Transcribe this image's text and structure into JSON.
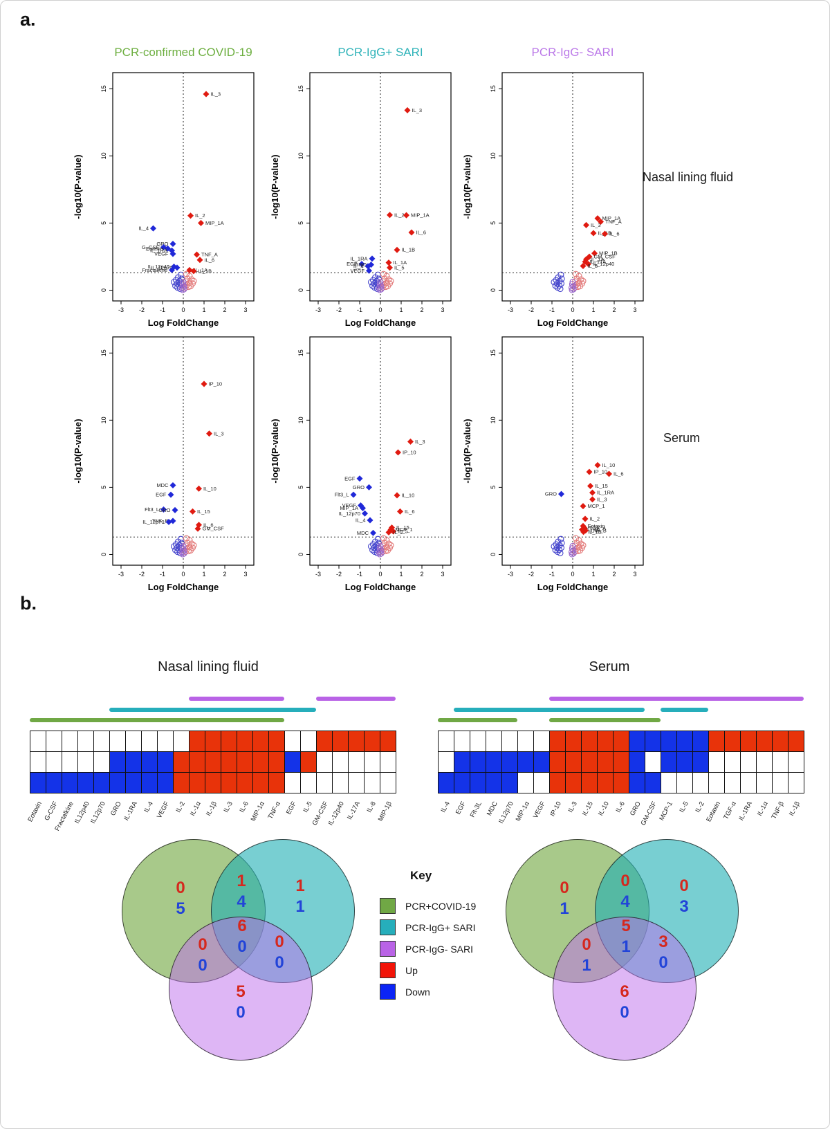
{
  "page": {
    "panel_a_label": "a.",
    "panel_b_label": "b."
  },
  "colors": {
    "green": "#6CAE3F",
    "teal": "#2FB3B9",
    "purple": "#BB79E8",
    "bar_green": "#70A845",
    "bar_teal": "#26AEBB",
    "bar_purple": "#B963E6",
    "cell_red": "#E8330A",
    "cell_blue": "#1433E8",
    "point_red": "#E01A10",
    "point_blue": "#2028D8",
    "venn_num_red": "#D5281E",
    "venn_num_blue": "#2244D8",
    "key_red": "#F21408",
    "key_blue": "#0B24F5"
  },
  "panel_a": {
    "row_labels": [
      "Nasal lining fluid",
      "Serum"
    ],
    "xlabel": "Log FoldChange",
    "ylabel": "-log10(P-value)",
    "x_ticks": [
      -3,
      -2,
      -1,
      0,
      1,
      2,
      3
    ],
    "y_ticks": [
      0,
      5,
      10,
      15
    ],
    "threshold_y": 1.3
  },
  "key": {
    "title": "Key",
    "entries": [
      {
        "swatch": "bar_green",
        "label": "PCR+COVID-19"
      },
      {
        "swatch": "bar_teal",
        "label": "PCR-IgG+ SARI"
      },
      {
        "swatch": "bar_purple",
        "label": "PCR-IgG- SARI"
      },
      {
        "swatch": "key_red",
        "label": "Up"
      },
      {
        "swatch": "key_blue",
        "label": "Down"
      }
    ]
  },
  "chart_data": {
    "volcanoes": [
      {
        "type": "scatter",
        "row": "Nasal lining fluid",
        "group": "PCR-confirmed COVID-19",
        "xlabel": "Log FoldChange",
        "ylabel": "-log10(P-value)",
        "xlim": [
          -3.4,
          3.4
        ],
        "ylim": [
          -0.8,
          16.2
        ],
        "up_points": [
          {
            "label": "IL_3",
            "x": 1.1,
            "y": 14.6
          },
          {
            "label": "IL_2",
            "x": 0.35,
            "y": 5.55
          },
          {
            "label": "MIP_1A",
            "x": 0.85,
            "y": 5.0
          },
          {
            "label": "TNF_A",
            "x": 0.65,
            "y": 2.65
          },
          {
            "label": "IL_6",
            "x": 0.8,
            "y": 2.25
          },
          {
            "label": "IL_1A",
            "x": 0.3,
            "y": 1.5
          },
          {
            "label": "IL_1B",
            "x": 0.5,
            "y": 1.42
          }
        ],
        "down_points": [
          {
            "label": "IL_4",
            "x": -1.45,
            "y": 4.6,
            "dir": "L"
          },
          {
            "label": "GRO",
            "x": -0.5,
            "y": 3.45,
            "dir": "L"
          },
          {
            "label": "G_CSF",
            "x": -0.95,
            "y": 3.2,
            "dir": "L"
          },
          {
            "label": "Eotaxin",
            "x": -0.75,
            "y": 3.1,
            "dir": "L"
          },
          {
            "label": "IL_1RA",
            "x": -0.55,
            "y": 2.95,
            "dir": "L"
          },
          {
            "label": "VEGF",
            "x": -0.5,
            "y": 2.7,
            "dir": "L"
          },
          {
            "label": "IL_12p40",
            "x": -0.45,
            "y": 1.75,
            "dir": "L"
          },
          {
            "label": "IL_12p70",
            "x": -0.3,
            "y": 1.68,
            "dir": "L"
          },
          {
            "label": "Fractalkine",
            "x": -0.55,
            "y": 1.5,
            "dir": "L"
          }
        ]
      },
      {
        "type": "scatter",
        "row": "Nasal lining fluid",
        "group": "PCR-IgG+ SARI",
        "xlabel": "Log FoldChange",
        "ylabel": "-log10(P-value)",
        "xlim": [
          -3.4,
          3.4
        ],
        "ylim": [
          -0.8,
          16.2
        ],
        "up_points": [
          {
            "label": "IL_3",
            "x": 1.3,
            "y": 13.4
          },
          {
            "label": "IL_2",
            "x": 0.45,
            "y": 5.6
          },
          {
            "label": "MIP_1A",
            "x": 1.25,
            "y": 5.58
          },
          {
            "label": "IL_6",
            "x": 1.5,
            "y": 4.3
          },
          {
            "label": "IL_1B",
            "x": 0.8,
            "y": 3.0
          },
          {
            "label": "IL_1A",
            "x": 0.4,
            "y": 2.05
          },
          {
            "label": "IL_5",
            "x": 0.45,
            "y": 1.68
          }
        ],
        "down_points": [
          {
            "label": "IL_1RA",
            "x": -0.4,
            "y": 2.35,
            "dir": "L"
          },
          {
            "label": "EGF",
            "x": -0.9,
            "y": 1.95,
            "dir": "L"
          },
          {
            "label": "GRO",
            "x": -0.45,
            "y": 1.9,
            "dir": "L"
          },
          {
            "label": "IL_4",
            "x": -0.6,
            "y": 1.78,
            "dir": "L"
          },
          {
            "label": "VEGF",
            "x": -0.55,
            "y": 1.45,
            "dir": "L"
          }
        ]
      },
      {
        "type": "scatter",
        "row": "Nasal lining fluid",
        "group": "PCR-IgG- SARI",
        "blue_shift": -0.45,
        "xlabel": "Log FoldChange",
        "ylabel": "-log10(P-value)",
        "xlim": [
          -3.4,
          3.4
        ],
        "ylim": [
          -0.8,
          16.2
        ],
        "up_points": [
          {
            "label": "MIP_1A",
            "x": 1.2,
            "y": 5.35
          },
          {
            "label": "TNF_A",
            "x": 1.35,
            "y": 5.1
          },
          {
            "label": "IL_3",
            "x": 0.65,
            "y": 4.85
          },
          {
            "label": "IL_1B",
            "x": 1.0,
            "y": 4.25
          },
          {
            "label": "IL_6",
            "x": 1.55,
            "y": 4.2
          },
          {
            "label": "MIP_1B",
            "x": 1.05,
            "y": 2.75
          },
          {
            "label": "GM_CSF",
            "x": 0.8,
            "y": 2.5
          },
          {
            "label": "IL_1A",
            "x": 0.65,
            "y": 2.3
          },
          {
            "label": "IL_17A",
            "x": 0.6,
            "y": 2.12
          },
          {
            "label": "IL_12p40",
            "x": 0.75,
            "y": 1.95
          },
          {
            "label": "IL_8",
            "x": 0.5,
            "y": 1.8
          }
        ],
        "down_points": []
      },
      {
        "type": "scatter",
        "row": "Serum",
        "group": "PCR-confirmed COVID-19",
        "xlabel": "Log FoldChange",
        "ylabel": "-log10(P-value)",
        "xlim": [
          -3.4,
          3.4
        ],
        "ylim": [
          -0.8,
          16.2
        ],
        "up_points": [
          {
            "label": "IP_10",
            "x": 1.0,
            "y": 12.7
          },
          {
            "label": "IL_3",
            "x": 1.25,
            "y": 9.0
          },
          {
            "label": "IL_10",
            "x": 0.75,
            "y": 4.9
          },
          {
            "label": "IL_15",
            "x": 0.45,
            "y": 3.2
          },
          {
            "label": "IL_6",
            "x": 0.75,
            "y": 2.2
          },
          {
            "label": "GM_CSF",
            "x": 0.7,
            "y": 1.92
          }
        ],
        "down_points": [
          {
            "label": "MDC",
            "x": -0.5,
            "y": 5.15,
            "dir": "L"
          },
          {
            "label": "EGF",
            "x": -0.6,
            "y": 4.45,
            "dir": "L"
          },
          {
            "label": "Flt3_L",
            "x": -0.95,
            "y": 3.35,
            "dir": "L"
          },
          {
            "label": "GRO",
            "x": -0.4,
            "y": 3.3,
            "dir": "L"
          },
          {
            "label": "TNF_B",
            "x": -0.5,
            "y": 2.5,
            "dir": "L"
          },
          {
            "label": "IL_12p70",
            "x": -0.7,
            "y": 2.42,
            "dir": "L"
          }
        ]
      },
      {
        "type": "scatter",
        "row": "Serum",
        "group": "PCR-IgG+ SARI",
        "xlabel": "Log FoldChange",
        "ylabel": "-log10(P-value)",
        "xlim": [
          -3.4,
          3.4
        ],
        "ylim": [
          -0.8,
          16.2
        ],
        "up_points": [
          {
            "label": "IL_3",
            "x": 1.45,
            "y": 8.4
          },
          {
            "label": "IP_10",
            "x": 0.85,
            "y": 7.6
          },
          {
            "label": "IL_10",
            "x": 0.8,
            "y": 4.4
          },
          {
            "label": "IL_6",
            "x": 0.95,
            "y": 3.2
          },
          {
            "label": "IL_15",
            "x": 0.55,
            "y": 2.0
          },
          {
            "label": "MCP_1",
            "x": 0.5,
            "y": 1.85
          },
          {
            "label": "IL_5",
            "x": 0.62,
            "y": 1.72
          },
          {
            "label": "IL_2",
            "x": 0.4,
            "y": 1.65
          }
        ],
        "down_points": [
          {
            "label": "EGF",
            "x": -1.0,
            "y": 5.65,
            "dir": "L"
          },
          {
            "label": "GRO",
            "x": -0.55,
            "y": 5.0,
            "dir": "L"
          },
          {
            "label": "Flt3_L",
            "x": -1.3,
            "y": 4.45,
            "dir": "L"
          },
          {
            "label": "VEGF",
            "x": -0.95,
            "y": 3.65,
            "dir": "L"
          },
          {
            "label": "MIP_1A",
            "x": -0.85,
            "y": 3.45,
            "dir": "L"
          },
          {
            "label": "IL_12p70",
            "x": -0.75,
            "y": 3.05,
            "dir": "L"
          },
          {
            "label": "IL_4",
            "x": -0.5,
            "y": 2.55,
            "dir": "L"
          },
          {
            "label": "MDC",
            "x": -0.35,
            "y": 1.6,
            "dir": "L"
          }
        ]
      },
      {
        "type": "scatter",
        "row": "Serum",
        "group": "PCR-IgG- SARI",
        "blue_shift": -0.45,
        "xlabel": "Log FoldChange",
        "ylabel": "-log10(P-value)",
        "xlim": [
          -3.4,
          3.4
        ],
        "ylim": [
          -0.8,
          16.2
        ],
        "up_points": [
          {
            "label": "IL_10",
            "x": 1.2,
            "y": 6.65
          },
          {
            "label": "IP_10",
            "x": 0.8,
            "y": 6.15
          },
          {
            "label": "IL_6",
            "x": 1.75,
            "y": 6.0
          },
          {
            "label": "IL_15",
            "x": 0.85,
            "y": 5.1
          },
          {
            "label": "IL_1RA",
            "x": 0.95,
            "y": 4.6
          },
          {
            "label": "IL_3",
            "x": 0.95,
            "y": 4.1
          },
          {
            "label": "MCP_1",
            "x": 0.5,
            "y": 3.6
          },
          {
            "label": "IL_2",
            "x": 0.6,
            "y": 2.65
          },
          {
            "label": "Eotaxin",
            "x": 0.5,
            "y": 2.12
          },
          {
            "label": "TGF_A",
            "x": 0.58,
            "y": 1.95
          },
          {
            "label": "IL_1A",
            "x": 0.45,
            "y": 1.85
          },
          {
            "label": "TNF_B",
            "x": 0.62,
            "y": 1.78
          },
          {
            "label": "IL_1B",
            "x": 0.52,
            "y": 1.68
          }
        ],
        "down_points": [
          {
            "label": "GRO",
            "x": -0.55,
            "y": 4.5,
            "dir": "L"
          }
        ]
      }
    ],
    "heatmaps": [
      {
        "type": "heatmap",
        "title": "Nasal lining fluid",
        "columns": [
          "Eotaxin",
          "G-CSF",
          "Fractalkine",
          "IL12p40",
          "IL12p70",
          "GRO",
          "IL-1RA",
          "IL-4",
          "VEGF",
          "IL-2",
          "IL-1α",
          "IL-1β",
          "IL-3",
          "IL-6",
          "MIP-1α",
          "TNF-α",
          "EGF",
          "IL-5",
          "GM-CSF",
          "IL-12p40",
          "IL-17A",
          "IL-8",
          "MIP-1β"
        ],
        "rows": [
          {
            "group": "PCR-IgG- SARI",
            "cells": "WWWWWWWWWWRRRRRRWWRRRRR"
          },
          {
            "group": "PCR-IgG+ SARI",
            "cells": "WWWWWBBBBRRRRRRRBRWWWWW"
          },
          {
            "group": "PCR+COVID-19",
            "cells": "BBBBBBBBBRRRRRRRWWWWWWW"
          }
        ],
        "bars": [
          {
            "color": "bar_purple",
            "segments": [
              [
                11,
                16
              ],
              [
                19,
                23
              ]
            ]
          },
          {
            "color": "bar_teal",
            "segments": [
              [
                6,
                18
              ]
            ]
          },
          {
            "color": "bar_green",
            "segments": [
              [
                1,
                16
              ]
            ]
          }
        ]
      },
      {
        "type": "heatmap",
        "title": "Serum",
        "columns": [
          "IL-4",
          "EGF",
          "Flt-3L",
          "MDC",
          "IL12p70",
          "MIP-1α",
          "VEGF",
          "IP-10",
          "IL-3",
          "IL-15",
          "IL-10",
          "IL-6",
          "GRO",
          "GM-CSF",
          "MCP-1",
          "IL-5",
          "IL-2",
          "Eotaxin",
          "TGF-α",
          "IL-1RA",
          "IL-1α",
          "TNF-β",
          "IL-1β"
        ],
        "rows": [
          {
            "group": "PCR-IgG- SARI",
            "cells": "WWWWWWWRRRRRBBBBBRRRRRR"
          },
          {
            "group": "PCR-IgG+ SARI",
            "cells": "WBBBBBBRRRRRBWBBBWWWWWW"
          },
          {
            "group": "PCR+COVID-19",
            "cells": "BBBBBWWRRRRRBBWWWWWWWWW"
          }
        ],
        "bars": [
          {
            "color": "bar_purple",
            "segments": [
              [
                8,
                23
              ]
            ]
          },
          {
            "color": "bar_teal",
            "segments": [
              [
                2,
                13
              ],
              [
                15,
                17
              ]
            ]
          },
          {
            "color": "bar_green",
            "segments": [
              [
                1,
                5
              ],
              [
                8,
                14
              ]
            ]
          }
        ]
      }
    ],
    "venns": [
      {
        "type": "venn",
        "title": "Nasal lining fluid",
        "circles": [
          "PCR+COVID-19",
          "PCR-IgG+ SARI",
          "PCR-IgG- SARI"
        ],
        "regions": {
          "green_only": {
            "up": 0,
            "down": 5
          },
          "green_teal": {
            "up": 1,
            "down": 4
          },
          "teal_only": {
            "up": 1,
            "down": 1
          },
          "center": {
            "up": 6,
            "down": 0
          },
          "green_purple": {
            "up": 0,
            "down": 0
          },
          "teal_purple": {
            "up": 0,
            "down": 0
          },
          "purple_only": {
            "up": 5,
            "down": 0
          }
        }
      },
      {
        "type": "venn",
        "title": "Serum",
        "circles": [
          "PCR+COVID-19",
          "PCR-IgG+ SARI",
          "PCR-IgG- SARI"
        ],
        "regions": {
          "green_only": {
            "up": 0,
            "down": 1
          },
          "green_teal": {
            "up": 0,
            "down": 4
          },
          "teal_only": {
            "up": 0,
            "down": 3
          },
          "center": {
            "up": 5,
            "down": 1
          },
          "green_purple": {
            "up": 0,
            "down": 1
          },
          "teal_purple": {
            "up": 3,
            "down": 0
          },
          "purple_only": {
            "up": 6,
            "down": 0
          }
        }
      }
    ]
  }
}
